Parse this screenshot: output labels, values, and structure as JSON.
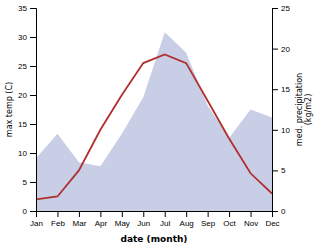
{
  "chart_data": {
    "type": "line",
    "xlabel": "date (month)",
    "ylabel": "max temp (C)",
    "y2label": "med. precipitation\n(kg/m2)",
    "categories": [
      "Jan",
      "Feb",
      "Mar",
      "Apr",
      "May",
      "Jun",
      "Jul",
      "Aug",
      "Sep",
      "Oct",
      "Nov",
      "Dec"
    ],
    "series": [
      {
        "type": "area",
        "axis": "y2",
        "color": "#aab4d8",
        "values": [
          6.5,
          9.5,
          6.0,
          5.5,
          9.5,
          14.0,
          22.0,
          19.5,
          13.0,
          9.0,
          12.5,
          11.5
        ]
      },
      {
        "type": "line",
        "color": "#b03030",
        "values": [
          2.0,
          2.5,
          7.0,
          14.0,
          20.0,
          25.5,
          27.0,
          25.5,
          19.0,
          12.5,
          6.5,
          3.0
        ]
      }
    ],
    "ylim": [
      0,
      35
    ],
    "yticks": [
      0,
      5,
      10,
      15,
      20,
      25,
      30,
      35
    ],
    "y2lim": [
      0,
      25
    ],
    "y2ticks": [
      0,
      5,
      10,
      15,
      20,
      25
    ],
    "grid": false
  }
}
